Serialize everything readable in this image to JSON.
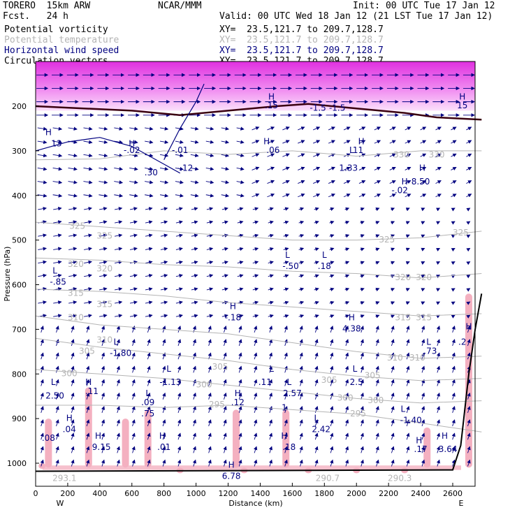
{
  "header": {
    "model": "TORERO  15km ARW",
    "org": "NCAR/MMM",
    "init": "Init: 00 UTC Tue 17 Jan 12",
    "fcst": "Fcst.   24 h",
    "valid": "Valid: 00 UTC Wed 18 Jan 12 (21 LST Tue 17 Jan 12)",
    "fields": [
      {
        "name": "Potential vorticity",
        "color": "#000000",
        "xy": "XY=  23.5,121.7 to 209.7,128.7"
      },
      {
        "name": "Potential temperature",
        "color": "#b4b4b4",
        "xy": "XY=  23.5,121.7 to 209.7,128.7"
      },
      {
        "name": "Horizontal wind speed",
        "color": "#000080",
        "xy": "XY=  23.5,121.7 to 209.7,128.7"
      },
      {
        "name": "Circulation vectors",
        "color": "#000000",
        "xy": "XY=  23.5,121.7 to 209.7,128.7"
      }
    ]
  },
  "colors": {
    "theta": "#b4b4b4",
    "wind": "#000080",
    "pv_fill": "#f4b0c0",
    "pv_high": "#e040e0",
    "terrain": "#000000"
  },
  "chart_data": {
    "type": "cross-section",
    "xlabel": "Distance (km)",
    "ylabel": "Pressure (hPa)",
    "xlim": [
      0,
      2780
    ],
    "ylim": [
      100,
      1050
    ],
    "xticks": [
      0,
      200,
      400,
      600,
      800,
      1000,
      1200,
      1400,
      1600,
      1800,
      2000,
      2200,
      2400,
      2600
    ],
    "yticks": [
      200,
      300,
      400,
      500,
      600,
      700,
      800,
      900,
      1000
    ],
    "x_endpoints": {
      "left": "W",
      "right": "E"
    },
    "theta_labels": [
      {
        "text": "330",
        "x": 2280,
        "p": 315
      },
      {
        "text": "330",
        "x": 2500,
        "p": 315
      },
      {
        "text": "325",
        "x": 260,
        "p": 475
      },
      {
        "text": "325",
        "x": 430,
        "p": 497
      },
      {
        "text": "325",
        "x": 2190,
        "p": 505
      },
      {
        "text": "325",
        "x": 2650,
        "p": 490
      },
      {
        "text": "320",
        "x": 250,
        "p": 560
      },
      {
        "text": "320",
        "x": 430,
        "p": 570
      },
      {
        "text": "320",
        "x": 2290,
        "p": 590
      },
      {
        "text": "320",
        "x": 2420,
        "p": 590
      },
      {
        "text": "315",
        "x": 250,
        "p": 625
      },
      {
        "text": "315",
        "x": 430,
        "p": 650
      },
      {
        "text": "315",
        "x": 2290,
        "p": 680
      },
      {
        "text": "315",
        "x": 2420,
        "p": 680
      },
      {
        "text": "310",
        "x": 250,
        "p": 680
      },
      {
        "text": "310",
        "x": 430,
        "p": 730
      },
      {
        "text": "310",
        "x": 2240,
        "p": 770
      },
      {
        "text": "310",
        "x": 2380,
        "p": 770
      },
      {
        "text": "305",
        "x": 320,
        "p": 755
      },
      {
        "text": "305",
        "x": 1150,
        "p": 790
      },
      {
        "text": "305",
        "x": 1830,
        "p": 820
      },
      {
        "text": "305",
        "x": 2100,
        "p": 810
      },
      {
        "text": "300",
        "x": 210,
        "p": 805
      },
      {
        "text": "300",
        "x": 1050,
        "p": 830
      },
      {
        "text": "300",
        "x": 1930,
        "p": 860
      },
      {
        "text": "300",
        "x": 2120,
        "p": 865
      },
      {
        "text": "295",
        "x": 1130,
        "p": 875
      },
      {
        "text": "295",
        "x": 2010,
        "p": 895
      },
      {
        "text": "293.1",
        "x": 180,
        "p": 1040
      },
      {
        "text": "290.7",
        "x": 1820,
        "p": 1040
      },
      {
        "text": "290.3",
        "x": 2270,
        "p": 1040
      }
    ],
    "pv_labels": [
      {
        "text": "H",
        "x": 1470,
        "p": 185
      },
      {
        "text": ".15",
        "x": 1470,
        "p": 205
      },
      {
        "text": "-1.5",
        "x": 1760,
        "p": 210
      },
      {
        "text": "-1.5",
        "x": 1880,
        "p": 210
      },
      {
        "text": "H",
        "x": 2660,
        "p": 185
      },
      {
        "text": "15",
        "x": 2660,
        "p": 205
      },
      {
        "text": "H",
        "x": 80,
        "p": 265
      },
      {
        "text": "13",
        "x": 130,
        "p": 290
      },
      {
        "text": "H",
        "x": 600,
        "p": 290
      },
      {
        "text": "-.02",
        "x": 600,
        "p": 305
      },
      {
        "text": "-.01",
        "x": 900,
        "p": 305
      },
      {
        "text": "-.12",
        "x": 930,
        "p": 345
      },
      {
        "text": "H",
        "x": 1440,
        "p": 285
      },
      {
        "text": ".06",
        "x": 1480,
        "p": 305
      },
      {
        "text": "H",
        "x": 2030,
        "p": 285
      },
      {
        "text": "L",
        "x": 1970,
        "p": 305
      },
      {
        "text": "11",
        "x": 2010,
        "p": 305
      },
      {
        "text": "1.33",
        "x": 1950,
        "p": 345
      },
      {
        "text": "H",
        "x": 2410,
        "p": 345
      },
      {
        "text": "H",
        "x": 2300,
        "p": 375
      },
      {
        "text": "8.50",
        "x": 2400,
        "p": 375
      },
      {
        "text": "-.02",
        "x": 2270,
        "p": 395
      },
      {
        "text": ".30",
        "x": 720,
        "p": 355
      },
      {
        "text": "L",
        "x": 1570,
        "p": 540
      },
      {
        "text": "-.50",
        "x": 1590,
        "p": 565
      },
      {
        "text": "L",
        "x": 1800,
        "p": 540
      },
      {
        "text": ".18",
        "x": 1800,
        "p": 565
      },
      {
        "text": "L",
        "x": 120,
        "p": 575
      },
      {
        "text": "-.85",
        "x": 140,
        "p": 600
      },
      {
        "text": "H",
        "x": 1230,
        "p": 655
      },
      {
        "text": "-.18",
        "x": 1230,
        "p": 680
      },
      {
        "text": "H",
        "x": 1970,
        "p": 680
      },
      {
        "text": "4.38",
        "x": 1970,
        "p": 705
      },
      {
        "text": "L",
        "x": 500,
        "p": 735
      },
      {
        "text": "-1.80",
        "x": 530,
        "p": 760
      },
      {
        "text": "L",
        "x": 2450,
        "p": 735
      },
      {
        "text": ".73",
        "x": 2460,
        "p": 755
      },
      {
        "text": "H",
        "x": 2700,
        "p": 700
      },
      {
        "text": ".2",
        "x": 2660,
        "p": 735
      },
      {
        "text": "L",
        "x": 110,
        "p": 825
      },
      {
        "text": "2.50",
        "x": 120,
        "p": 855
      },
      {
        "text": "H",
        "x": 330,
        "p": 825
      },
      {
        "text": ".11",
        "x": 350,
        "p": 845
      },
      {
        "text": "L",
        "x": 830,
        "p": 795
      },
      {
        "text": "-1.13",
        "x": 840,
        "p": 825
      },
      {
        "text": "L",
        "x": 1470,
        "p": 795
      },
      {
        "text": ".11",
        "x": 1430,
        "p": 825
      },
      {
        "text": "L",
        "x": 1580,
        "p": 825
      },
      {
        "text": "2.57",
        "x": 1600,
        "p": 850
      },
      {
        "text": "L",
        "x": 1990,
        "p": 795
      },
      {
        "text": "2.5",
        "x": 2000,
        "p": 825
      },
      {
        "text": "H",
        "x": 1260,
        "p": 850
      },
      {
        "text": ".12",
        "x": 1260,
        "p": 870
      },
      {
        "text": "L",
        "x": 700,
        "p": 850
      },
      {
        "text": ".09",
        "x": 700,
        "p": 870
      },
      {
        "text": ".75",
        "x": 700,
        "p": 895
      },
      {
        "text": "1",
        "x": 1550,
        "p": 882
      },
      {
        "text": "H",
        "x": 210,
        "p": 905
      },
      {
        "text": ".04",
        "x": 210,
        "p": 930
      },
      {
        "text": "L",
        "x": 1750,
        "p": 905
      },
      {
        "text": "2.42",
        "x": 1780,
        "p": 930
      },
      {
        "text": "L",
        "x": 2290,
        "p": 885
      },
      {
        "text": "-1.40",
        "x": 2340,
        "p": 910
      },
      {
        "text": ".08",
        "x": 80,
        "p": 950
      },
      {
        "text": "H",
        "x": 390,
        "p": 945
      },
      {
        "text": "9.15",
        "x": 410,
        "p": 970
      },
      {
        "text": "H",
        "x": 790,
        "p": 945
      },
      {
        "text": ".01",
        "x": 800,
        "p": 970
      },
      {
        "text": "H",
        "x": 1550,
        "p": 945
      },
      {
        "text": ".18",
        "x": 1580,
        "p": 970
      },
      {
        "text": "H",
        "x": 2390,
        "p": 955
      },
      {
        "text": ".17",
        "x": 2400,
        "p": 975
      },
      {
        "text": "H",
        "x": 2550,
        "p": 945
      },
      {
        "text": "3.64",
        "x": 2570,
        "p": 975
      },
      {
        "text": "H",
        "x": 1220,
        "p": 1010
      },
      {
        "text": "6.78",
        "x": 1220,
        "p": 1035
      }
    ],
    "theta_lines": [
      [
        [
          0,
          320
        ],
        [
          400,
          318
        ],
        [
          800,
          300
        ],
        [
          1200,
          308
        ],
        [
          1600,
          300
        ],
        [
          2000,
          312
        ],
        [
          2400,
          300
        ],
        [
          2780,
          300
        ]
      ],
      [
        [
          0,
          460
        ],
        [
          400,
          470
        ],
        [
          800,
          480
        ],
        [
          1200,
          490
        ],
        [
          1600,
          500
        ],
        [
          2000,
          500
        ],
        [
          2400,
          495
        ],
        [
          2780,
          480
        ]
      ],
      [
        [
          0,
          540
        ],
        [
          400,
          545
        ],
        [
          800,
          555
        ],
        [
          1200,
          560
        ],
        [
          1600,
          570
        ],
        [
          2000,
          575
        ],
        [
          2400,
          585
        ],
        [
          2780,
          575
        ]
      ],
      [
        [
          0,
          610
        ],
        [
          400,
          615
        ],
        [
          800,
          625
        ],
        [
          1200,
          640
        ],
        [
          1600,
          650
        ],
        [
          2000,
          660
        ],
        [
          2400,
          670
        ],
        [
          2780,
          665
        ]
      ],
      [
        [
          0,
          670
        ],
        [
          400,
          690
        ],
        [
          800,
          700
        ],
        [
          1200,
          710
        ],
        [
          1600,
          730
        ],
        [
          2000,
          750
        ],
        [
          2400,
          765
        ],
        [
          2780,
          760
        ]
      ],
      [
        [
          0,
          720
        ],
        [
          400,
          740
        ],
        [
          800,
          755
        ],
        [
          1200,
          770
        ],
        [
          1600,
          790
        ],
        [
          2000,
          805
        ],
        [
          2400,
          815
        ],
        [
          2780,
          810
        ]
      ],
      [
        [
          0,
          790
        ],
        [
          400,
          800
        ],
        [
          800,
          810
        ],
        [
          1200,
          825
        ],
        [
          1600,
          840
        ],
        [
          2000,
          855
        ],
        [
          2400,
          865
        ],
        [
          2780,
          860
        ]
      ],
      [
        [
          0,
          870
        ],
        [
          400,
          870
        ],
        [
          800,
          875
        ],
        [
          1200,
          870
        ],
        [
          1600,
          880
        ],
        [
          2000,
          890
        ],
        [
          2400,
          910
        ],
        [
          2780,
          930
        ]
      ]
    ],
    "pv_lines": [
      [
        [
          0,
          200
        ],
        [
          300,
          205
        ],
        [
          600,
          210
        ],
        [
          900,
          220
        ],
        [
          1200,
          210
        ],
        [
          1500,
          200
        ],
        [
          1700,
          195
        ],
        [
          2000,
          205
        ],
        [
          2300,
          215
        ],
        [
          2500,
          225
        ],
        [
          2780,
          230
        ]
      ],
      [
        [
          0,
          300
        ],
        [
          200,
          280
        ],
        [
          400,
          270
        ],
        [
          600,
          290
        ],
        [
          800,
          330
        ],
        [
          900,
          350
        ]
      ],
      [
        [
          800,
          320
        ],
        [
          900,
          250
        ],
        [
          1000,
          190
        ],
        [
          1050,
          150
        ]
      ]
    ],
    "terrain": [
      [
        0,
        1018
      ],
      [
        2600,
        1015
      ],
      [
        2650,
        960
      ],
      [
        2700,
        800
      ],
      [
        2740,
        700
      ],
      [
        2780,
        620
      ]
    ]
  }
}
